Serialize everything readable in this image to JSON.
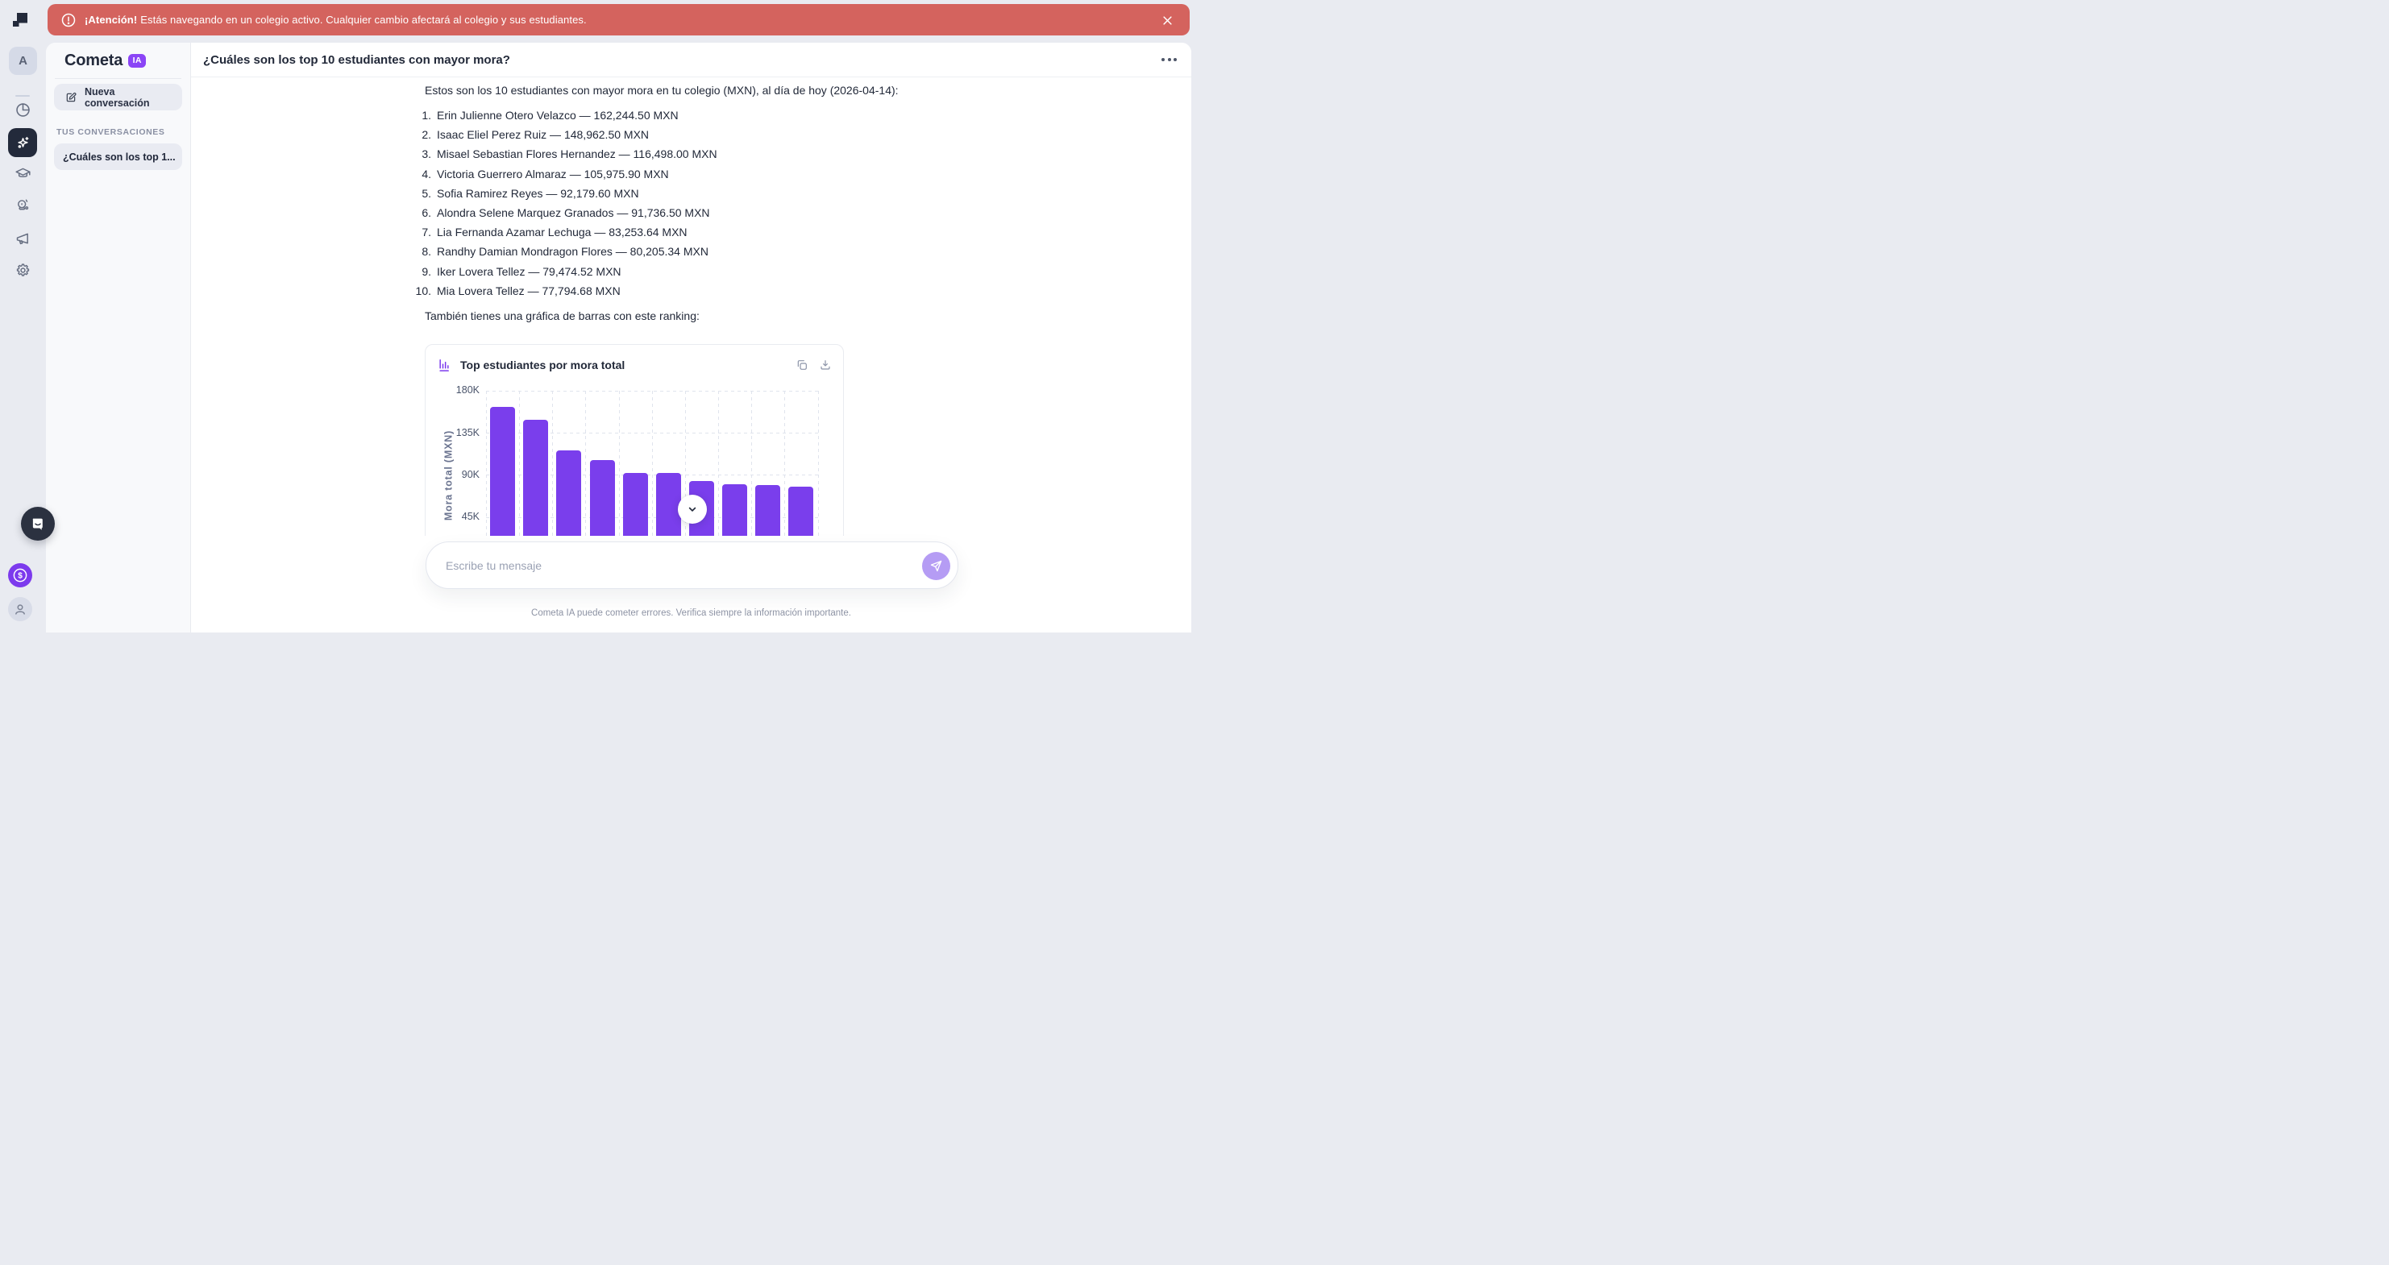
{
  "banner": {
    "bold": "¡Atención!",
    "text": "Estás navegando en un colegio activo. Cualquier cambio afectará al colegio y sus estudiantes."
  },
  "rail": {
    "avatar_letter": "A"
  },
  "sidebar": {
    "brand": "Cometa",
    "badge": "IA",
    "new_conversation_label": "Nueva conversación",
    "section_label": "TUS CONVERSACIONES",
    "conversations": [
      {
        "label": "¿Cuáles son los top 1..."
      }
    ]
  },
  "chat": {
    "title": "¿Cuáles son los top 10 estudiantes con mayor mora?",
    "intro": "Estos son los 10 estudiantes con mayor mora en tu colegio (MXN), al día de hoy (2026-04-14):",
    "students": [
      {
        "name": "Erin Julienne Otero Velazco",
        "amount": "162,244.50 MXN"
      },
      {
        "name": "Isaac Eliel Perez Ruiz",
        "amount": "148,962.50 MXN"
      },
      {
        "name": "Misael Sebastian Flores Hernandez",
        "amount": "116,498.00 MXN"
      },
      {
        "name": "Victoria Guerrero Almaraz",
        "amount": "105,975.90 MXN"
      },
      {
        "name": "Sofia Ramirez Reyes",
        "amount": "92,179.60 MXN"
      },
      {
        "name": "Alondra Selene Marquez Granados",
        "amount": "91,736.50 MXN"
      },
      {
        "name": "Lia Fernanda Azamar Lechuga",
        "amount": "83,253.64 MXN"
      },
      {
        "name": "Randhy Damian Mondragon Flores",
        "amount": "80,205.34 MXN"
      },
      {
        "name": "Iker Lovera Tellez",
        "amount": "79,474.52 MXN"
      },
      {
        "name": "Mia Lovera Tellez",
        "amount": "77,794.68 MXN"
      }
    ],
    "chart_note": "También tienes una gráfica de barras con este ranking:",
    "composer_placeholder": "Escribe tu mensaje",
    "disclaimer": "Cometa IA puede cometer errores. Verifica siempre la información importante."
  },
  "chart_data": {
    "type": "bar",
    "title": "Top estudiantes por mora total",
    "ylabel": "Mora total (MXN)",
    "categories": [
      "Erin Julienne Otero Velazco",
      "Isaac Eliel Perez Ruiz",
      "Misael Sebastian Flores Hernandez",
      "Victoria Guerrero Almaraz",
      "Sofia Ramirez Reyes",
      "Alondra Selene Marquez Granados",
      "Lia Fernanda Azamar Lechuga",
      "Randhy Damian Mondragon Flores",
      "Iker Lovera Tellez",
      "Mia Lovera Tellez"
    ],
    "values": [
      162244.5,
      148962.5,
      116498.0,
      105975.9,
      92179.6,
      91736.5,
      83253.64,
      80205.34,
      79474.52,
      77794.68
    ],
    "ylim": [
      0,
      180000
    ],
    "yticks": [
      {
        "label": "45K",
        "value": 45000
      },
      {
        "label": "90K",
        "value": 90000
      },
      {
        "label": "135K",
        "value": 135000
      },
      {
        "label": "180K",
        "value": 180000
      }
    ],
    "grid": "dashed",
    "legend": "none",
    "bar_color": "#7a3eec"
  },
  "colors": {
    "accent_purple": "#7c3aed",
    "banner_red": "#d4635e",
    "send_button": "#b59cf4",
    "dark_navy": "#232a3b"
  }
}
